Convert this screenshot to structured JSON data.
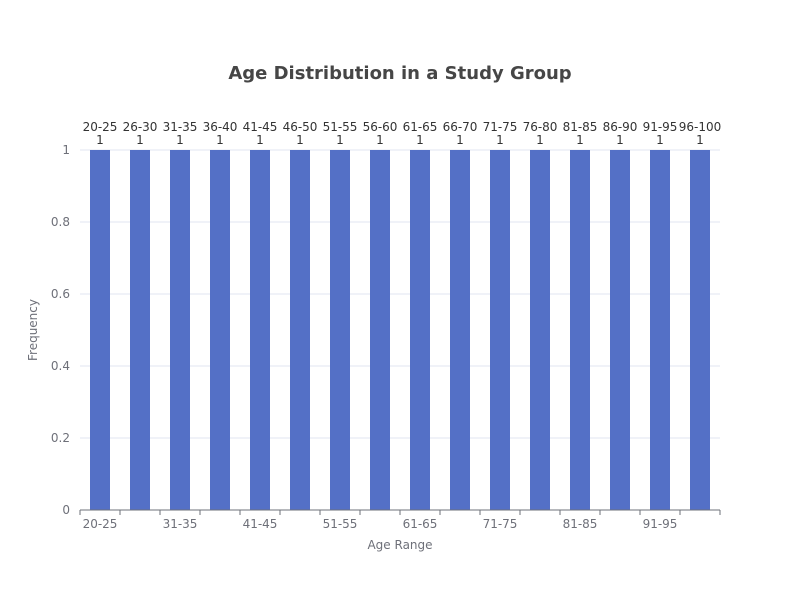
{
  "chart_data": {
    "type": "bar",
    "title": "Age Distribution in a Study Group",
    "xlabel": "Age Range",
    "ylabel": "Frequency",
    "categories": [
      "20-25",
      "26-30",
      "31-35",
      "36-40",
      "41-45",
      "46-50",
      "51-55",
      "56-60",
      "61-65",
      "66-70",
      "71-75",
      "76-80",
      "81-85",
      "86-90",
      "91-95",
      "96-100"
    ],
    "values": [
      1,
      1,
      1,
      1,
      1,
      1,
      1,
      1,
      1,
      1,
      1,
      1,
      1,
      1,
      1,
      1
    ],
    "ylim": [
      0,
      1
    ],
    "yticks": [
      0,
      0.2,
      0.4,
      0.6,
      0.8,
      1
    ],
    "xtick_labels_shown": [
      "20-25",
      "31-35",
      "41-45",
      "51-55",
      "61-65",
      "71-75",
      "81-85",
      "91-95"
    ],
    "bar_color": "#5470c6",
    "grid": true,
    "legend": "none",
    "data_labels": "category and value above each bar"
  }
}
